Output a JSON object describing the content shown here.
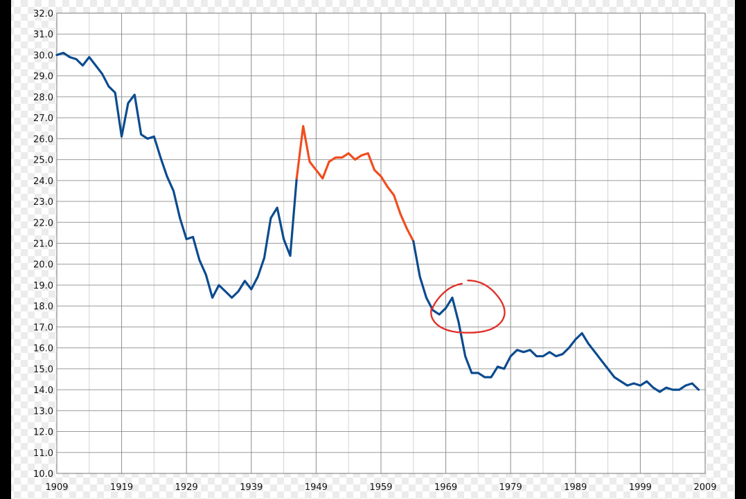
{
  "chart_data": {
    "type": "line",
    "title": "",
    "xlabel": "",
    "ylabel": "",
    "xlim": [
      1909,
      2009
    ],
    "ylim": [
      10,
      32
    ],
    "x_ticks": [
      "1909",
      "1919",
      "1929",
      "1939",
      "1949",
      "1959",
      "1969",
      "1979",
      "1989",
      "1999",
      "2009"
    ],
    "y_ticks": [
      "10.0",
      "11.0",
      "12.0",
      "13.0",
      "14.0",
      "15.0",
      "16.0",
      "17.0",
      "18.0",
      "19.0",
      "20.0",
      "21.0",
      "22.0",
      "23.0",
      "24.0",
      "25.0",
      "26.0",
      "27.0",
      "28.0",
      "29.0",
      "30.0",
      "31.0",
      "32.0"
    ],
    "grid": true,
    "series": [
      {
        "color": "#0b4b8f",
        "points": [
          [
            1909,
            30.0
          ],
          [
            1910,
            30.1
          ],
          [
            1911,
            29.9
          ],
          [
            1912,
            29.8
          ],
          [
            1913,
            29.5
          ],
          [
            1914,
            29.9
          ],
          [
            1915,
            29.5
          ],
          [
            1916,
            29.1
          ],
          [
            1917,
            28.5
          ],
          [
            1918,
            28.2
          ],
          [
            1919,
            26.1
          ],
          [
            1920,
            27.7
          ],
          [
            1921,
            28.1
          ],
          [
            1922,
            26.2
          ],
          [
            1923,
            26.0
          ],
          [
            1924,
            26.1
          ],
          [
            1925,
            25.1
          ],
          [
            1926,
            24.2
          ],
          [
            1927,
            23.5
          ],
          [
            1928,
            22.2
          ],
          [
            1929,
            21.2
          ],
          [
            1930,
            21.3
          ],
          [
            1931,
            20.2
          ],
          [
            1932,
            19.5
          ],
          [
            1933,
            18.4
          ],
          [
            1934,
            19.0
          ],
          [
            1935,
            18.7
          ],
          [
            1936,
            18.4
          ],
          [
            1937,
            18.7
          ],
          [
            1938,
            19.2
          ],
          [
            1939,
            18.8
          ],
          [
            1940,
            19.4
          ],
          [
            1941,
            20.3
          ],
          [
            1942,
            22.2
          ],
          [
            1943,
            22.7
          ],
          [
            1944,
            21.2
          ],
          [
            1945,
            20.4
          ],
          [
            1946,
            24.1
          ]
        ],
        "color_name": "blue"
      },
      {
        "color": "#f04e1e",
        "points": [
          [
            1946,
            24.1
          ],
          [
            1947,
            26.6
          ],
          [
            1948,
            24.9
          ],
          [
            1949,
            24.5
          ],
          [
            1950,
            24.1
          ],
          [
            1951,
            24.9
          ],
          [
            1952,
            25.1
          ],
          [
            1953,
            25.1
          ],
          [
            1954,
            25.3
          ],
          [
            1955,
            25.0
          ],
          [
            1956,
            25.2
          ],
          [
            1957,
            25.3
          ],
          [
            1958,
            24.5
          ],
          [
            1959,
            24.2
          ],
          [
            1960,
            23.7
          ],
          [
            1961,
            23.3
          ],
          [
            1962,
            22.4
          ],
          [
            1963,
            21.7
          ],
          [
            1964,
            21.1
          ]
        ],
        "color_name": "orange"
      },
      {
        "color": "#0b4b8f",
        "points": [
          [
            1964,
            21.1
          ],
          [
            1965,
            19.4
          ],
          [
            1966,
            18.4
          ],
          [
            1967,
            17.8
          ],
          [
            1968,
            17.6
          ],
          [
            1969,
            17.9
          ],
          [
            1970,
            18.4
          ],
          [
            1971,
            17.2
          ],
          [
            1972,
            15.6
          ],
          [
            1973,
            14.8
          ],
          [
            1974,
            14.8
          ],
          [
            1975,
            14.6
          ],
          [
            1976,
            14.6
          ],
          [
            1977,
            15.1
          ],
          [
            1978,
            15.0
          ],
          [
            1979,
            15.6
          ],
          [
            1980,
            15.9
          ],
          [
            1981,
            15.8
          ],
          [
            1982,
            15.9
          ],
          [
            1983,
            15.6
          ],
          [
            1984,
            15.6
          ],
          [
            1985,
            15.8
          ],
          [
            1986,
            15.6
          ],
          [
            1987,
            15.7
          ],
          [
            1988,
            16.0
          ],
          [
            1989,
            16.4
          ],
          [
            1990,
            16.7
          ],
          [
            1991,
            16.2
          ],
          [
            1992,
            15.8
          ],
          [
            1993,
            15.4
          ],
          [
            1994,
            15.0
          ],
          [
            1995,
            14.6
          ],
          [
            1996,
            14.4
          ],
          [
            1997,
            14.2
          ],
          [
            1998,
            14.3
          ],
          [
            1999,
            14.2
          ],
          [
            2000,
            14.4
          ],
          [
            2001,
            14.1
          ],
          [
            2002,
            13.9
          ],
          [
            2003,
            14.1
          ],
          [
            2004,
            14.0
          ],
          [
            2005,
            14.0
          ],
          [
            2006,
            14.2
          ],
          [
            2007,
            14.3
          ],
          [
            2008,
            14.0
          ]
        ],
        "color_name": "blue"
      }
    ],
    "annotation": {
      "type": "hand-drawn-circle",
      "color": "#e0312b",
      "center": [
        1972.4,
        17.9
      ],
      "radii": [
        5.6,
        1.25
      ]
    }
  }
}
